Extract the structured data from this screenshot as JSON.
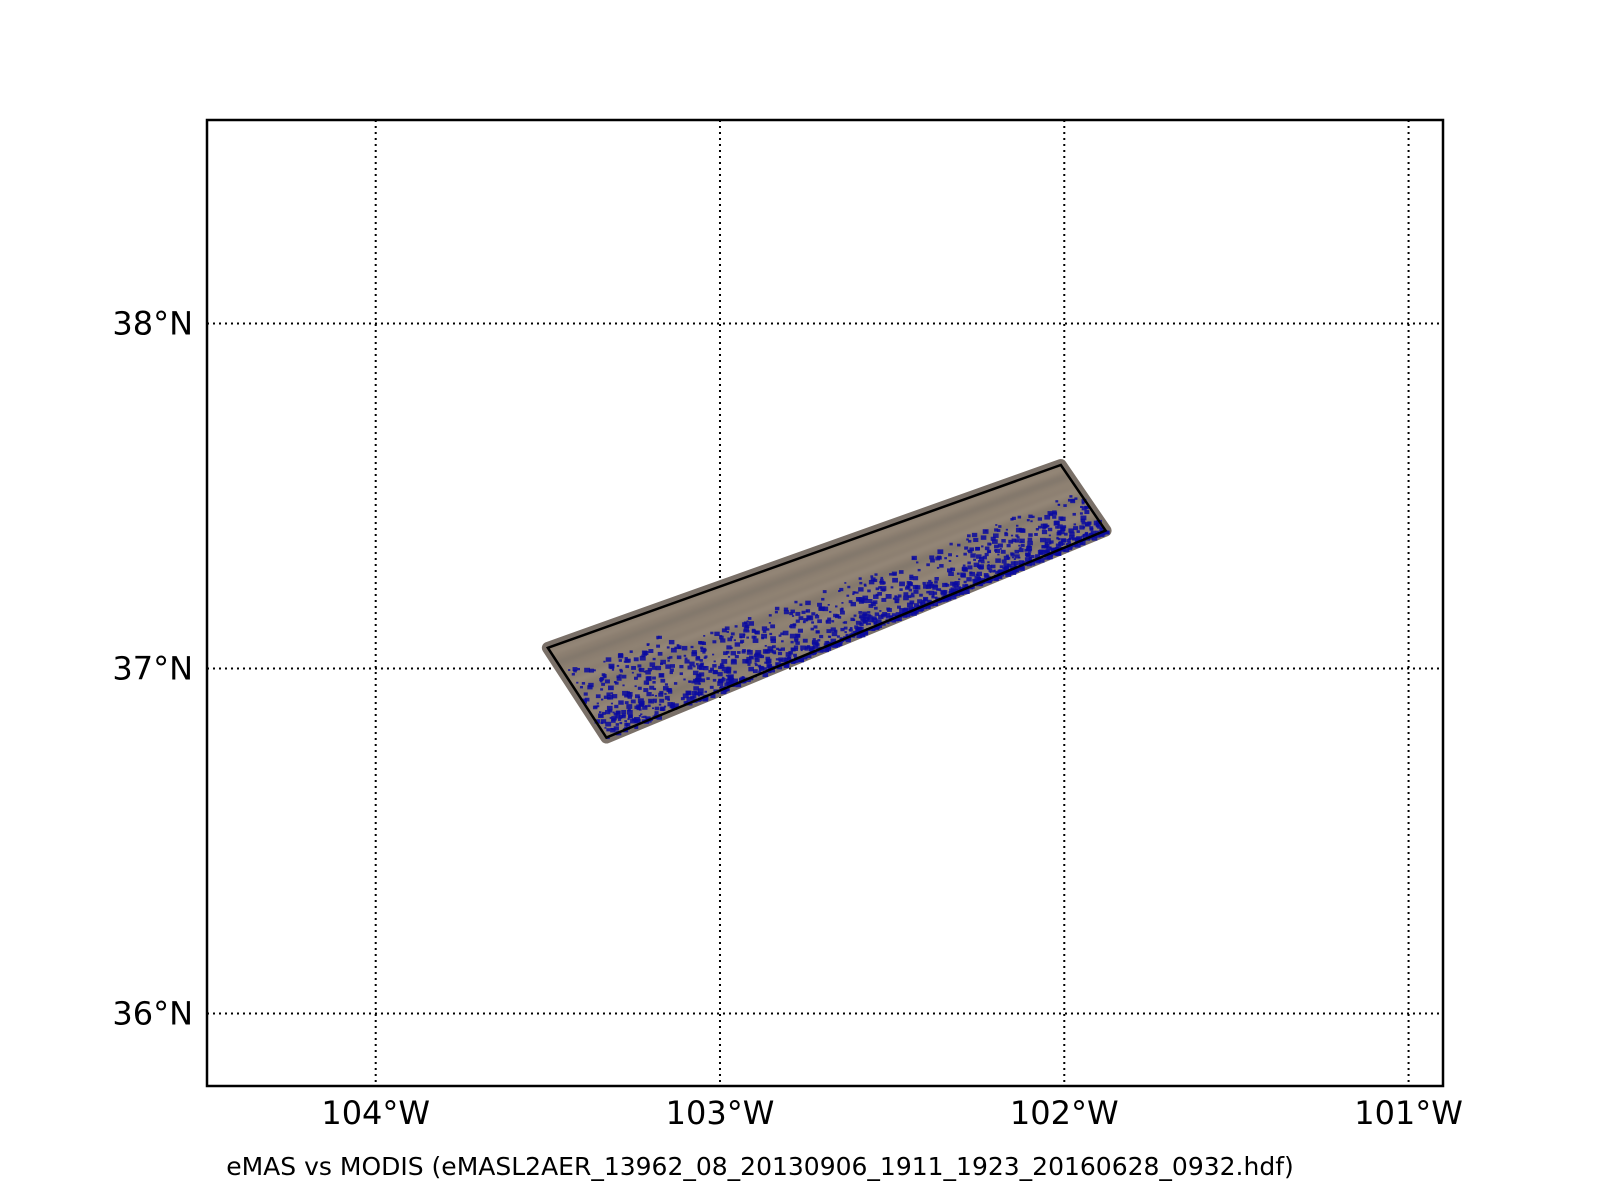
{
  "caption": "eMAS vs MODIS (eMASL2AER_13962_08_20130906_1911_1923_20160628_0932.hdf)",
  "map": {
    "lon_range": [
      -104.49,
      -100.9
    ],
    "lat_range": [
      35.79,
      38.59
    ],
    "gridlines": "dotted",
    "lon_ticks": [
      {
        "value": -104,
        "label": "104°W"
      },
      {
        "value": -103,
        "label": "103°W"
      },
      {
        "value": -102,
        "label": "102°W"
      },
      {
        "value": -101,
        "label": "101°W"
      }
    ],
    "lat_ticks": [
      {
        "value": 38,
        "label": "38°N"
      },
      {
        "value": 37,
        "label": "37°N"
      },
      {
        "value": 36,
        "label": "36°N"
      }
    ],
    "swath_corners": [
      {
        "lon": -103.5,
        "lat": 37.06
      },
      {
        "lon": -102.01,
        "lat": 37.59
      },
      {
        "lon": -101.88,
        "lat": 37.4
      },
      {
        "lon": -103.33,
        "lat": 36.8
      }
    ],
    "colors": {
      "swath_fill": "#8b7e70",
      "swath_outline": "#000000",
      "aerosol_pixels": "#0a0aa0"
    }
  }
}
